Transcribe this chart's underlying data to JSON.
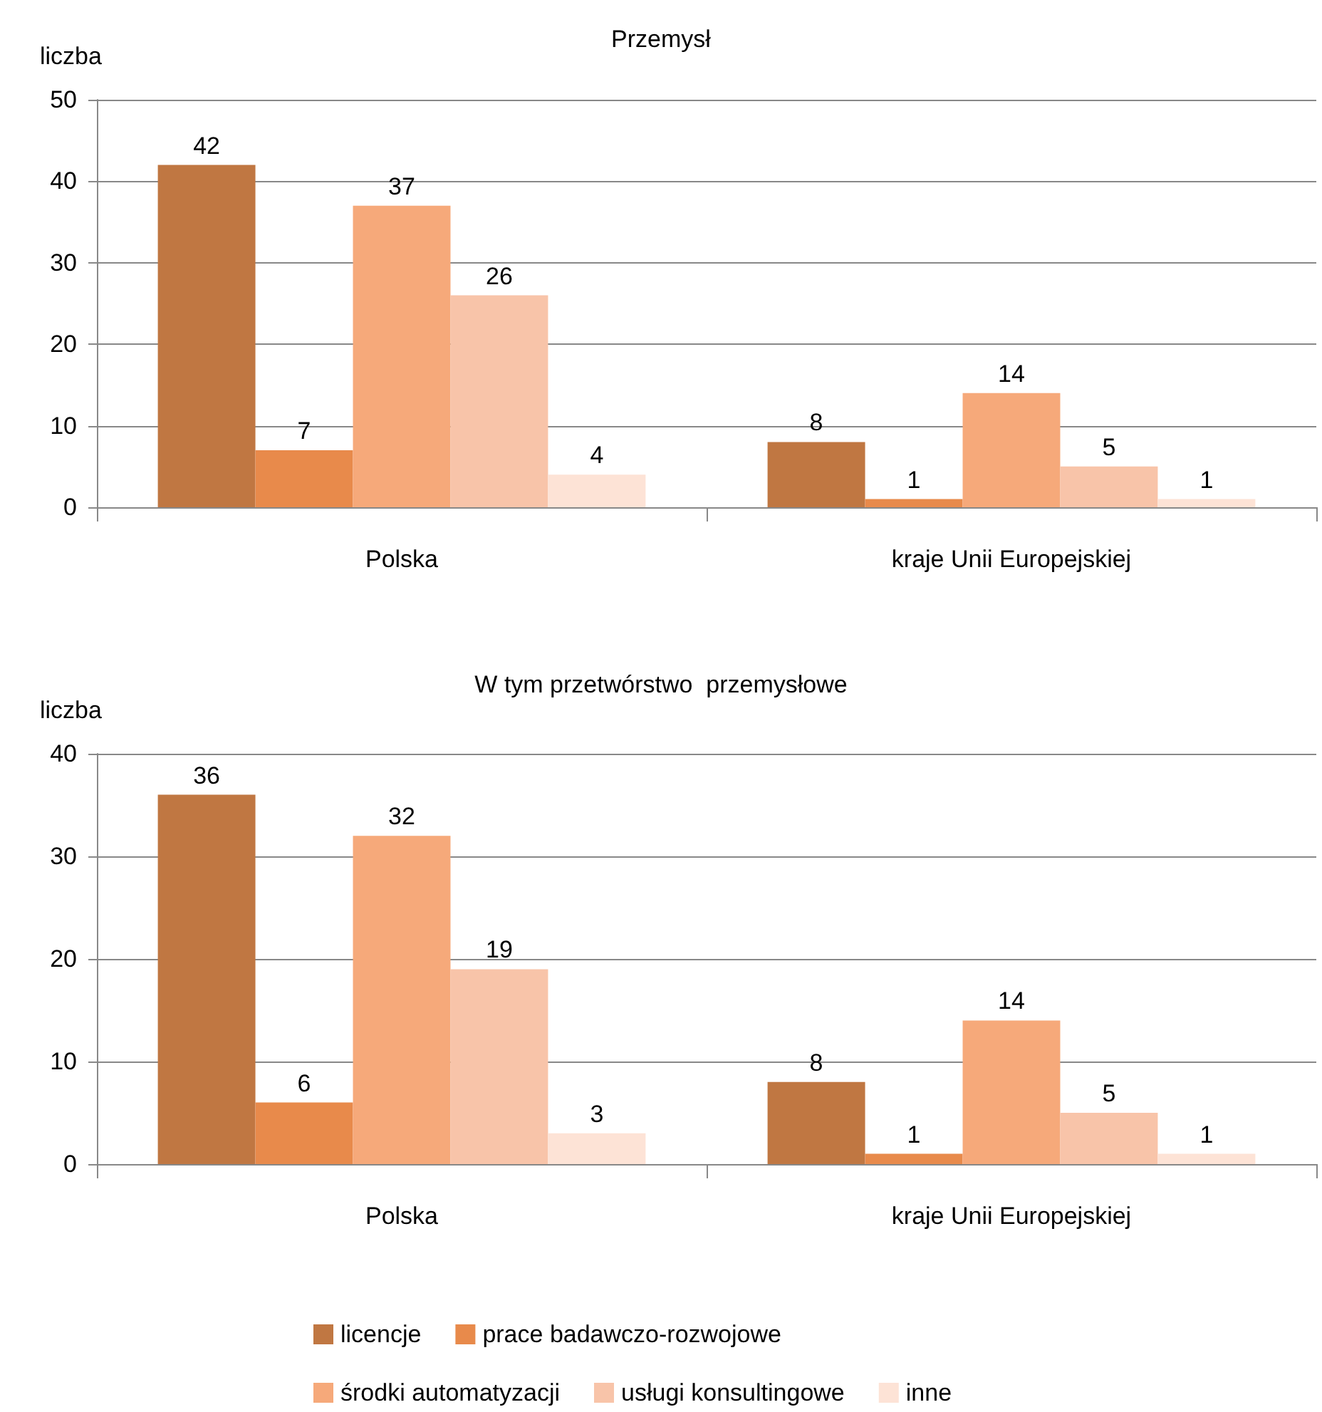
{
  "chart_data": [
    {
      "type": "bar",
      "title": "Przemysł",
      "ylabel": "liczba",
      "categories": [
        "Polska",
        "kraje Unii Europejskiej"
      ],
      "series": [
        {
          "color": "#c07742",
          "values": [
            42,
            8
          ]
        },
        {
          "color": "#e88a4b",
          "values": [
            7,
            1
          ]
        },
        {
          "color": "#f6a97a",
          "values": [
            37,
            14
          ]
        },
        {
          "color": "#f8c4a9",
          "values": [
            26,
            5
          ]
        },
        {
          "color": "#fde3d6",
          "values": [
            4,
            1
          ]
        }
      ],
      "ylim": [
        0,
        50
      ],
      "yticks": [
        0,
        10,
        20,
        30,
        40,
        50
      ],
      "grid": "y",
      "data_labels": true,
      "legend": false
    },
    {
      "type": "bar",
      "title": "W tym przetwórstwo  przemysłowe",
      "ylabel": "liczba",
      "categories": [
        "Polska",
        "kraje Unii Europejskiej"
      ],
      "series": [
        {
          "name": "licencje",
          "color": "#c07742",
          "values": [
            36,
            8
          ]
        },
        {
          "name": "prace badawczo-rozwojowe",
          "color": "#e88a4b",
          "values": [
            6,
            1
          ]
        },
        {
          "name": "środki automatyzacji",
          "color": "#f6a97a",
          "values": [
            32,
            14
          ]
        },
        {
          "name": "usługi konsultingowe",
          "color": "#f8c4a9",
          "values": [
            19,
            5
          ]
        },
        {
          "name": "inne",
          "color": "#fde3d6",
          "values": [
            3,
            1
          ]
        }
      ],
      "ylim": [
        0,
        40
      ],
      "yticks": [
        0,
        10,
        20,
        30,
        40
      ],
      "grid": "y",
      "data_labels": true,
      "legend": "bottom"
    }
  ]
}
